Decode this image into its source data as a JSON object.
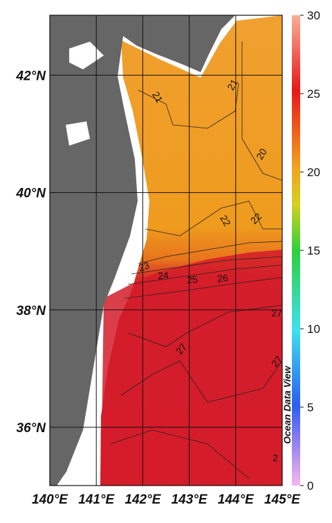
{
  "map": {
    "lon_ticks": [
      {
        "value": 140,
        "label": "140°E"
      },
      {
        "value": 141,
        "label": "141°E"
      },
      {
        "value": 142,
        "label": "142°E"
      },
      {
        "value": 143,
        "label": "143°E"
      },
      {
        "value": 144,
        "label": "144°E"
      },
      {
        "value": 145,
        "label": "145°E"
      }
    ],
    "lat_ticks": [
      {
        "value": 36,
        "label": "36°N"
      },
      {
        "value": 38,
        "label": "38°N"
      },
      {
        "value": 40,
        "label": "40°N"
      },
      {
        "value": 42,
        "label": "42°N"
      }
    ],
    "colorbar": {
      "lim": [
        0,
        30
      ],
      "ticks": [
        0,
        5,
        10,
        15,
        20,
        25,
        30
      ]
    },
    "contour_labels": [
      21,
      21,
      20,
      22,
      22,
      23,
      24,
      25,
      26,
      27,
      27,
      27,
      2
    ],
    "watermark": "Ocean Data View"
  }
}
